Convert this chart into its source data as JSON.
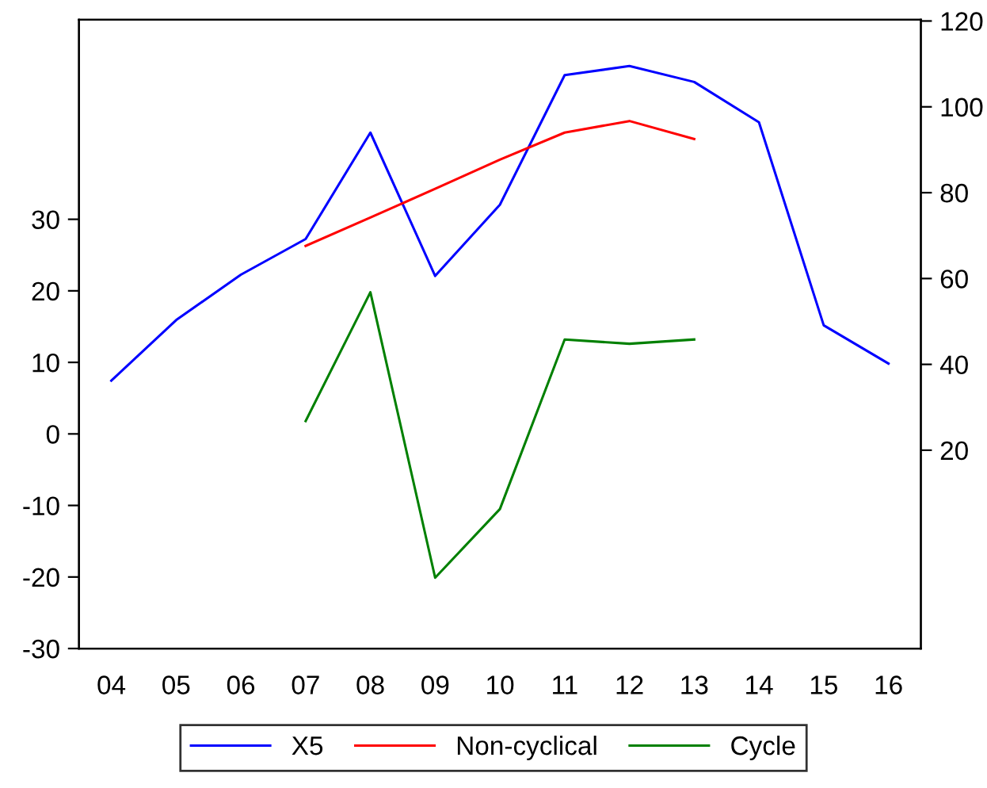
{
  "chart_data": {
    "type": "line",
    "categories": [
      "04",
      "05",
      "06",
      "07",
      "08",
      "09",
      "10",
      "11",
      "12",
      "13",
      "14",
      "15",
      "16"
    ],
    "series": [
      {
        "name": "X5",
        "color": "#0000ff",
        "axis": "y2",
        "values": [
          36.2,
          50.3,
          60.9,
          69.2,
          94.0,
          60.6,
          77.2,
          107.4,
          109.5,
          105.8,
          96.4,
          49.1,
          40.2
        ]
      },
      {
        "name": "Non-cyclical",
        "color": "#ff0000",
        "axis": "y2",
        "values": [
          null,
          null,
          null,
          67.6,
          74.2,
          80.9,
          87.7,
          94.0,
          96.7,
          92.5,
          null,
          null,
          null
        ]
      },
      {
        "name": "Cycle",
        "color": "#008000",
        "axis": "y",
        "values": [
          null,
          null,
          null,
          1.8,
          19.8,
          -20.1,
          -10.5,
          13.2,
          12.6,
          13.2,
          null,
          null,
          null
        ]
      }
    ],
    "ylim": [
      -30,
      57.9
    ],
    "yticks": [
      -30,
      -20,
      -10,
      0,
      10,
      20,
      30
    ],
    "y2lim": [
      -26.2,
      120.3
    ],
    "y2ticks": [
      20,
      40,
      60,
      80,
      100,
      120
    ],
    "legend": "bottom",
    "grid": false,
    "line_style": "solid",
    "marker": "none"
  }
}
